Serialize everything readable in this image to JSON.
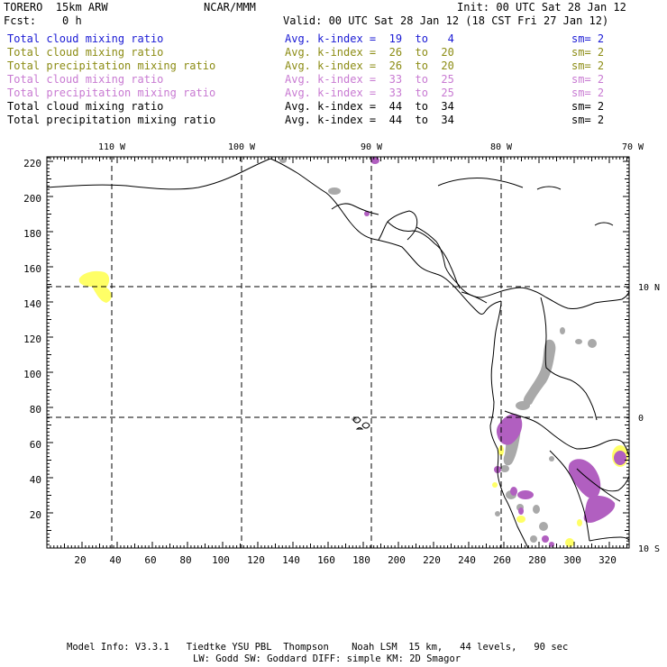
{
  "header": {
    "model": "TORERO  15km ARW",
    "org": "NCAR/MMM",
    "init": "Init: 00 UTC Sat 28 Jan 12",
    "fcst": "Fcst:    0 h",
    "valid": "Valid: 00 UTC Sat 28 Jan 12 (18 CST Fri 27 Jan 12)"
  },
  "fields": [
    {
      "name": "Total cloud mixing ratio",
      "kindex": "Avg. k-index =  19  to   4",
      "sm": "sm= 2",
      "color": "#1a1ad4"
    },
    {
      "name": "Total cloud mixing ratio",
      "kindex": "Avg. k-index =  26  to  20",
      "sm": "sm= 2",
      "color": "#8c8c14"
    },
    {
      "name": "Total precipitation mixing ratio",
      "kindex": "Avg. k-index =  26  to  20",
      "sm": "sm= 2",
      "color": "#8c8c14"
    },
    {
      "name": "Total cloud mixing ratio",
      "kindex": "Avg. k-index =  33  to  25",
      "sm": "sm= 2",
      "color": "#c87ad2"
    },
    {
      "name": "Total precipitation mixing ratio",
      "kindex": "Avg. k-index =  33  to  25",
      "sm": "sm= 2",
      "color": "#c87ad2"
    },
    {
      "name": "Total cloud mixing ratio",
      "kindex": "Avg. k-index =  44  to  34",
      "sm": "sm= 2",
      "color": "#000000"
    },
    {
      "name": "Total precipitation mixing ratio",
      "kindex": "Avg. k-index =  44  to  34",
      "sm": "sm= 2",
      "color": "#000000"
    }
  ],
  "map": {
    "lon_labels": [
      "110 W",
      "100 W",
      "90 W",
      "80 W",
      "70 W"
    ],
    "lat_labels": [
      "10 N",
      "0",
      "10 S"
    ],
    "y_ticks": [
      "220",
      "200",
      "180",
      "160",
      "140",
      "120",
      "100",
      "80",
      "60",
      "40",
      "20"
    ],
    "x_ticks": [
      "20",
      "40",
      "60",
      "80",
      "100",
      "120",
      "140",
      "160",
      "180",
      "200",
      "220",
      "240",
      "260",
      "280",
      "300",
      "320"
    ],
    "colors": {
      "yellow": "#ffff66",
      "gray": "#a9a9a9",
      "purple": "#b15fc0",
      "grid": "#000000",
      "coast": "#000000"
    }
  },
  "footer": {
    "line1": "Model Info: V3.3.1   Tiedtke YSU PBL  Thompson    Noah LSM  15 km,   44 levels,   90 sec",
    "line2": "LW: Godd SW: Goddard DIFF: simple KM: 2D Smagor"
  }
}
